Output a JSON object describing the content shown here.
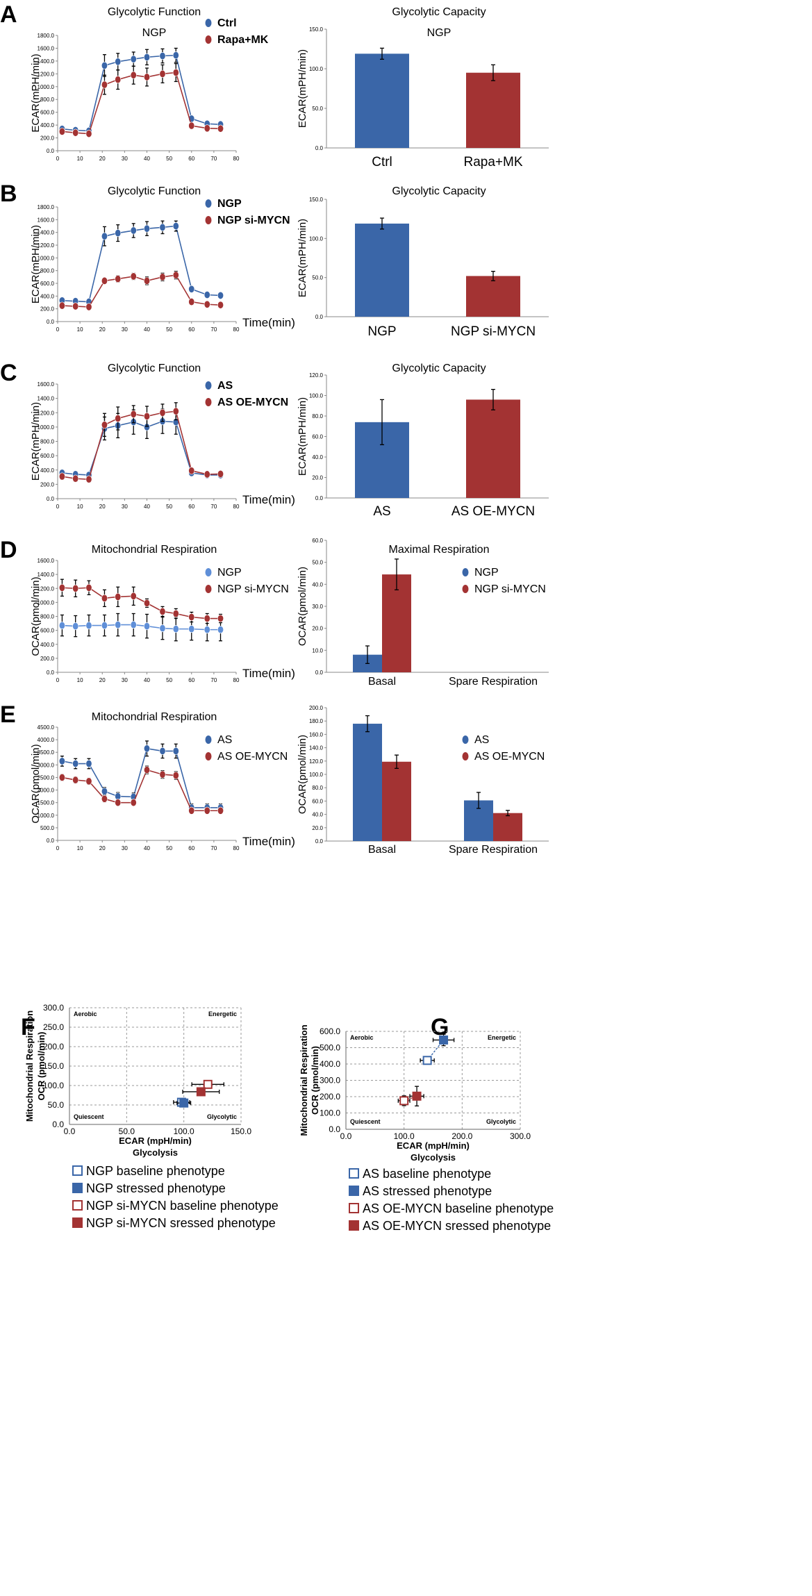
{
  "colors": {
    "blue": "#3a66a8",
    "red": "#a33333",
    "light_blue": "#5f8fd8",
    "error": "#000000",
    "grid": "#999999"
  },
  "common": {
    "x_ticks": [
      "0",
      "10",
      "20",
      "30",
      "40",
      "50",
      "60",
      "70",
      "80"
    ],
    "time_label": "Time(min)"
  },
  "chart_data": [
    {
      "id": "A-line",
      "panel": "A",
      "type": "line",
      "title": "Glycolytic Function",
      "subtitle": "NGP",
      "ylabel": "ECAR(mPH/min)",
      "xlabel": "",
      "xlim": [
        0,
        80
      ],
      "ylim": [
        0,
        1800
      ],
      "y_ticks": [
        "0.0",
        "200.0",
        "400.0",
        "600.0",
        "800.0",
        "1000.0",
        "1200.0",
        "1400.0",
        "1600.0",
        "1800.0"
      ],
      "x": [
        2,
        8,
        14,
        21,
        27,
        34,
        40,
        47,
        53,
        60,
        67,
        73
      ],
      "series": [
        {
          "name": "Ctrl",
          "color": "blue",
          "values": [
            340,
            320,
            310,
            1330,
            1390,
            1430,
            1460,
            1480,
            1490,
            500,
            420,
            410
          ],
          "err": [
            40,
            30,
            30,
            170,
            130,
            110,
            120,
            110,
            110,
            40,
            30,
            30
          ]
        },
        {
          "name": "Rapa+MK",
          "color": "red",
          "values": [
            300,
            280,
            265,
            1030,
            1110,
            1180,
            1150,
            1200,
            1220,
            390,
            350,
            345
          ],
          "err": [
            40,
            30,
            30,
            150,
            150,
            140,
            140,
            140,
            140,
            40,
            30,
            30
          ]
        }
      ],
      "legend": [
        "Ctrl",
        "Rapa+MK"
      ],
      "legend_bold": true
    },
    {
      "id": "A-bar",
      "panel": "A",
      "type": "bar",
      "title": "Glycolytic Capacity",
      "subtitle": "NGP",
      "ylabel": "ECAR(mPH/min)",
      "ylim": [
        0,
        150
      ],
      "y_ticks": [
        "0.0",
        "50.0",
        "100.0",
        "150.0"
      ],
      "categories": [
        "Ctrl",
        "Rapa+MK"
      ],
      "values": [
        119,
        95
      ],
      "err": [
        7,
        10
      ],
      "colors": [
        "blue",
        "red"
      ]
    },
    {
      "id": "B-line",
      "panel": "B",
      "type": "line",
      "title": "Glycolytic Function",
      "ylabel": "ECAR(mPH/min)",
      "xlabel": "Time(min)",
      "xlim": [
        0,
        80
      ],
      "ylim": [
        0,
        1800
      ],
      "y_ticks": [
        "0.0",
        "200.0",
        "400.0",
        "600.0",
        "800.0",
        "1000.0",
        "1200.0",
        "1400.0",
        "1600.0",
        "1800.0"
      ],
      "x": [
        2,
        8,
        14,
        21,
        27,
        34,
        40,
        47,
        53,
        60,
        67,
        73
      ],
      "series": [
        {
          "name": "NGP",
          "color": "blue",
          "values": [
            330,
            320,
            310,
            1340,
            1390,
            1430,
            1460,
            1480,
            1500,
            510,
            420,
            410
          ],
          "err": [
            40,
            40,
            30,
            150,
            130,
            110,
            110,
            100,
            80,
            40,
            30,
            30
          ]
        },
        {
          "name": "NGP si-MYCN",
          "color": "red",
          "values": [
            250,
            240,
            230,
            640,
            670,
            710,
            640,
            700,
            730,
            310,
            270,
            260
          ],
          "err": [
            40,
            30,
            30,
            40,
            50,
            50,
            60,
            60,
            60,
            30,
            30,
            30
          ]
        }
      ],
      "legend": [
        "NGP",
        "NGP si-MYCN"
      ],
      "legend_bold": true
    },
    {
      "id": "B-bar",
      "panel": "B",
      "type": "bar",
      "title": "Glycolytic Capacity",
      "ylabel": "ECAR(mPH/min)",
      "ylim": [
        0,
        150
      ],
      "y_ticks": [
        "0.0",
        "50.0",
        "100.0",
        "150.0"
      ],
      "categories": [
        "NGP",
        "NGP si-MYCN"
      ],
      "values": [
        119,
        52
      ],
      "err": [
        7,
        6
      ],
      "colors": [
        "blue",
        "red"
      ]
    },
    {
      "id": "C-line",
      "panel": "C",
      "type": "line",
      "title": "Glycolytic Function",
      "ylabel": "ECAR(mPH/min)",
      "xlabel": "Time(min)",
      "xlim": [
        0,
        80
      ],
      "ylim": [
        0,
        1600
      ],
      "y_ticks": [
        "0.0",
        "200.0",
        "400.0",
        "600.0",
        "800.0",
        "1000.0",
        "1200.0",
        "1400.0",
        "1600.0"
      ],
      "x": [
        2,
        8,
        14,
        21,
        27,
        34,
        40,
        47,
        53,
        60,
        67,
        73
      ],
      "series": [
        {
          "name": "AS",
          "color": "blue",
          "values": [
            360,
            340,
            330,
            980,
            1020,
            1070,
            1000,
            1080,
            1070,
            360,
            330,
            330
          ],
          "err": [
            40,
            40,
            40,
            160,
            170,
            170,
            160,
            170,
            170,
            40,
            30,
            30
          ]
        },
        {
          "name": "AS OE-MYCN",
          "color": "red",
          "values": [
            310,
            280,
            270,
            1030,
            1120,
            1180,
            1150,
            1200,
            1220,
            390,
            340,
            345
          ],
          "err": [
            40,
            40,
            40,
            160,
            160,
            120,
            140,
            120,
            120,
            40,
            30,
            30
          ]
        }
      ],
      "legend": [
        "AS",
        "AS OE-MYCN"
      ],
      "legend_bold": true
    },
    {
      "id": "C-bar",
      "panel": "C",
      "type": "bar",
      "title": "Glycolytic Capacity",
      "ylabel": "ECAR(mPH/min)",
      "ylim": [
        0,
        120
      ],
      "y_ticks": [
        "0.0",
        "20.0",
        "40.0",
        "60.0",
        "80.0",
        "100.0",
        "120.0"
      ],
      "categories": [
        "AS",
        "AS OE-MYCN"
      ],
      "values": [
        74,
        96
      ],
      "err": [
        22,
        10
      ],
      "colors": [
        "blue",
        "red"
      ]
    },
    {
      "id": "D-line",
      "panel": "D",
      "type": "line",
      "title": "Mitochondrial Respiration",
      "ylabel": "OCAR(pmol/min)",
      "xlabel": "Time(min)",
      "xlim": [
        0,
        80
      ],
      "ylim": [
        0,
        1600
      ],
      "y_ticks": [
        "0.0",
        "200.0",
        "400.0",
        "600.0",
        "800.0",
        "1000.0",
        "1200.0",
        "1400.0",
        "1600.0"
      ],
      "x": [
        2,
        8,
        14,
        21,
        27,
        34,
        40,
        47,
        53,
        60,
        67,
        73
      ],
      "series": [
        {
          "name": "NGP",
          "color": "light_blue",
          "values": [
            670,
            660,
            670,
            670,
            680,
            680,
            660,
            630,
            620,
            620,
            610,
            610
          ],
          "err": [
            150,
            150,
            150,
            150,
            160,
            160,
            170,
            160,
            170,
            160,
            160,
            160
          ]
        },
        {
          "name": "NGP si-MYCN",
          "color": "red",
          "values": [
            1210,
            1200,
            1210,
            1060,
            1080,
            1090,
            990,
            870,
            840,
            790,
            770,
            770
          ],
          "err": [
            120,
            120,
            100,
            120,
            140,
            130,
            60,
            70,
            70,
            70,
            70,
            60
          ]
        }
      ],
      "legend": [
        "NGP",
        "NGP si-MYCN"
      ],
      "legend_bold": false
    },
    {
      "id": "D-bar",
      "panel": "D",
      "type": "bar",
      "title": "Maximal Respiration",
      "ylabel": "OCAR(pmol/min)",
      "ylim": [
        0,
        60
      ],
      "y_ticks": [
        "0.0",
        "10.0",
        "20.0",
        "30.0",
        "40.0",
        "50.0",
        "60.0"
      ],
      "categories": [
        "Basal",
        "Spare Respiration"
      ],
      "series": [
        {
          "name": "NGP",
          "color": "blue",
          "values": [
            8,
            null
          ],
          "err": [
            4,
            null
          ]
        },
        {
          "name": "NGP si-MYCN",
          "color": "red",
          "values": [
            44.5,
            null
          ],
          "err": [
            7,
            null
          ]
        }
      ],
      "legend": [
        "NGP",
        "NGP si-MYCN"
      ]
    },
    {
      "id": "E-line",
      "panel": "E",
      "type": "line",
      "title": "Mitochondrial Respiration",
      "ylabel": "OCAR(pmol/min)",
      "xlabel": "Time(min)",
      "xlim": [
        0,
        80
      ],
      "ylim": [
        0,
        4500
      ],
      "y_ticks": [
        "0.0",
        "500.0",
        "1000.0",
        "1500.0",
        "2000.0",
        "2500.0",
        "3000.0",
        "3500.0",
        "4000.0",
        "4500.0"
      ],
      "x": [
        2,
        8,
        14,
        21,
        27,
        34,
        40,
        47,
        53,
        60,
        67,
        73
      ],
      "series": [
        {
          "name": "AS",
          "color": "blue",
          "values": [
            3150,
            3050,
            3050,
            1950,
            1750,
            1730,
            3650,
            3550,
            3550,
            1300,
            1300,
            1300
          ],
          "err": [
            200,
            200,
            200,
            150,
            150,
            150,
            300,
            280,
            280,
            150,
            150,
            150
          ]
        },
        {
          "name": "AS OE-MYCN",
          "color": "red",
          "values": [
            2500,
            2400,
            2350,
            1650,
            1500,
            1500,
            2800,
            2620,
            2580,
            1180,
            1180,
            1180
          ],
          "err": [
            120,
            120,
            120,
            120,
            100,
            100,
            150,
            150,
            150,
            100,
            100,
            100
          ]
        }
      ],
      "legend": [
        "AS",
        "AS OE-MYCN"
      ],
      "legend_bold": false
    },
    {
      "id": "E-bar",
      "panel": "E",
      "type": "bar",
      "title": "",
      "ylabel": "OCAR(pmol/min)",
      "ylim": [
        0,
        200
      ],
      "y_ticks": [
        "0.0",
        "20.0",
        "40.0",
        "60.0",
        "80.0",
        "100.0",
        "120.0",
        "140.0",
        "160.0",
        "180.0",
        "200.0"
      ],
      "categories": [
        "Basal",
        "Spare Respiration"
      ],
      "series": [
        {
          "name": "AS",
          "color": "blue",
          "values": [
            176,
            61
          ],
          "err": [
            12,
            12
          ]
        },
        {
          "name": "AS OE-MYCN",
          "color": "red",
          "values": [
            119,
            42
          ],
          "err": [
            10,
            4
          ]
        }
      ],
      "legend": [
        "AS",
        "AS OE-MYCN"
      ]
    },
    {
      "id": "F-scatter",
      "panel": "F",
      "type": "scatter",
      "xlabel": "ECAR (mpH/min)",
      "xlabel2": "Glycolysis",
      "ylabel": "OCR (pmol/min)",
      "ylabel2": "Mitochondrial Respiration",
      "xlim": [
        0,
        150
      ],
      "ylim": [
        0,
        300
      ],
      "x_ticks": [
        "0.0",
        "50.0",
        "100.0",
        "150.0"
      ],
      "y_ticks": [
        "0.0",
        "50.0",
        "100.0",
        "150.0",
        "200.0",
        "250.0",
        "300.0"
      ],
      "quadrants": [
        "Aerobic",
        "Energetic",
        "Quiescent",
        "Glycolytic"
      ],
      "points": [
        {
          "label": "NGP baseline phenotype",
          "x": 98,
          "y": 57,
          "xerr": 7,
          "yerr": 5,
          "color": "blue",
          "filled": false
        },
        {
          "label": "NGP stressed phenotype",
          "x": 100,
          "y": 55,
          "xerr": 6,
          "yerr": 5,
          "color": "blue",
          "filled": true
        },
        {
          "label": "NGP si-MYCN baseline phenotype",
          "x": 121,
          "y": 103,
          "xerr": 14,
          "yerr": 7,
          "color": "red",
          "filled": false
        },
        {
          "label": "NGP si-MYCN sressed phenotype",
          "x": 115,
          "y": 84,
          "xerr": 16,
          "yerr": 7,
          "color": "red",
          "filled": true
        }
      ],
      "connectors": [
        [
          0,
          1
        ],
        [
          2,
          3
        ]
      ]
    },
    {
      "id": "G-scatter",
      "panel": "G",
      "type": "scatter",
      "xlabel": "ECAR (mpH/min)",
      "xlabel2": "Glycolysis",
      "ylabel": "OCR (pmol/min)",
      "ylabel2": "Mitochondrial Respiration",
      "xlim": [
        0,
        300
      ],
      "ylim": [
        0,
        600
      ],
      "x_ticks": [
        "0.0",
        "100.0",
        "200.0",
        "300.0"
      ],
      "y_ticks": [
        "0.0",
        "100.0",
        "200.0",
        "300.0",
        "400.0",
        "500.0",
        "600.0"
      ],
      "quadrants": [
        "Aerobic",
        "Energetic",
        "Quiescent",
        "Glycolytic"
      ],
      "points": [
        {
          "label": "AS baseline phenotype",
          "x": 140,
          "y": 422,
          "xerr": 12,
          "yerr": 20,
          "color": "blue",
          "filled": false
        },
        {
          "label": "AS stressed phenotype",
          "x": 168,
          "y": 547,
          "xerr": 18,
          "yerr": 35,
          "color": "blue",
          "filled": true
        },
        {
          "label": "AS OE-MYCN baseline phenotype",
          "x": 100,
          "y": 175,
          "xerr": 10,
          "yerr": 30,
          "color": "red",
          "filled": false
        },
        {
          "label": "AS OE-MYCN sressed phenotype",
          "x": 122,
          "y": 203,
          "xerr": 12,
          "yerr": 60,
          "color": "red",
          "filled": true
        }
      ],
      "connectors": [
        [
          0,
          1
        ],
        [
          2,
          3
        ]
      ]
    }
  ],
  "panel_labels": [
    "A",
    "B",
    "C",
    "D",
    "E",
    "F",
    "G"
  ]
}
